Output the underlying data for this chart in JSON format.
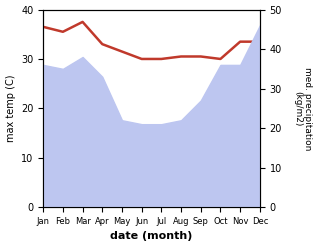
{
  "months": [
    "Jan",
    "Feb",
    "Mar",
    "Apr",
    "May",
    "Jun",
    "Jul",
    "Aug",
    "Sep",
    "Oct",
    "Nov",
    "Dec"
  ],
  "max_temp": [
    36.5,
    35.5,
    37.5,
    33.0,
    31.5,
    30.0,
    30.0,
    30.5,
    30.5,
    30.0,
    33.5,
    33.5
  ],
  "precipitation": [
    36,
    35,
    38,
    33,
    22,
    21,
    21,
    22,
    27,
    36,
    36,
    46
  ],
  "temp_ylim": [
    0,
    40
  ],
  "precip_ylim": [
    0,
    50
  ],
  "temp_color": "#c0392b",
  "precip_fill_color": "#bdc6f0",
  "xlabel": "date (month)",
  "ylabel_left": "max temp (C)",
  "ylabel_right": "med. precipitation\n(kg/m2)",
  "temp_linewidth": 1.8,
  "ylabel_right_rotation": 270,
  "ylabel_right_labelpad": 8
}
